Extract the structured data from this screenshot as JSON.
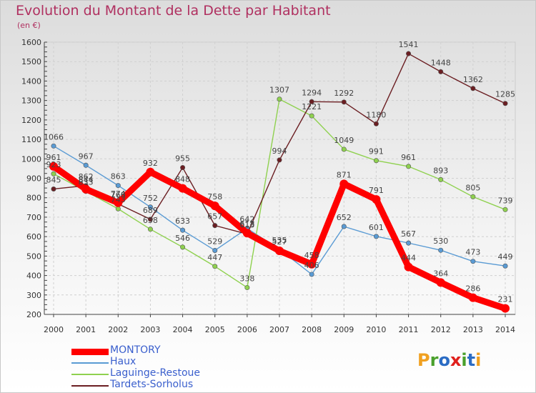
{
  "title": "Evolution du Montant de la Dette par Habitant",
  "unit": "(en €)",
  "logo": {
    "text": "Proxiti",
    "colors": [
      "#f0a020",
      "#4aa02c",
      "#2b6cc4",
      "#e0201c",
      "#4aa02c",
      "#2b6cc4",
      "#f0a020"
    ]
  },
  "chart_data": {
    "type": "line",
    "title": "Evolution du Montant de la Dette par Habitant",
    "ylabel": "(en €)",
    "xlabel": "",
    "x": [
      "2000",
      "2001",
      "2002",
      "2003",
      "2004",
      "2005",
      "2006",
      "2007",
      "2008",
      "2009",
      "2010",
      "2011",
      "2012",
      "2013",
      "2014"
    ],
    "ylim": [
      200,
      1600
    ],
    "yticks": [
      200,
      300,
      400,
      500,
      600,
      700,
      800,
      900,
      1000,
      1100,
      1200,
      1300,
      1400,
      1500,
      1600
    ],
    "grid": true,
    "legend": "bottom-left",
    "series": [
      {
        "name": "MONTORY",
        "color": "#ff0000",
        "values": [
          961,
          844,
          774,
          932,
          848,
          758,
          618,
          527,
          458,
          871,
          791,
          444,
          364,
          286,
          231
        ]
      },
      {
        "name": "Haux",
        "color": "#5a9bd4",
        "values": [
          1066,
          967,
          863,
          752,
          633,
          529,
          642,
          535,
          406,
          652,
          601,
          567,
          530,
          473,
          449
        ]
      },
      {
        "name": "Laguinge-Restoue",
        "color": "#8fd14f",
        "values": [
          923,
          833,
          743,
          638,
          546,
          447,
          338,
          1307,
          1221,
          1049,
          991,
          961,
          893,
          805,
          739
        ]
      },
      {
        "name": "Tardets-Sorholus",
        "color": "#6b1e22",
        "values": [
          845,
          862,
          768,
          689,
          955,
          657,
          613,
          994,
          1294,
          1292,
          1180,
          1541,
          1448,
          1362,
          1285
        ]
      }
    ]
  }
}
